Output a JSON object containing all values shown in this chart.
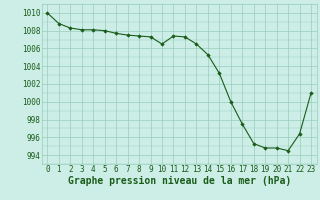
{
  "x": [
    0,
    1,
    2,
    3,
    4,
    5,
    6,
    7,
    8,
    9,
    10,
    11,
    12,
    13,
    14,
    15,
    16,
    17,
    18,
    19,
    20,
    21,
    22,
    23
  ],
  "y": [
    1010,
    1008.8,
    1008.3,
    1008.1,
    1008.1,
    1008.0,
    1007.7,
    1007.5,
    1007.4,
    1007.3,
    1006.5,
    1007.4,
    1007.3,
    1006.5,
    1005.3,
    1003.2,
    1000.0,
    997.5,
    995.3,
    994.8,
    994.8,
    994.5,
    996.4,
    1001.0
  ],
  "line_color": "#1a5c1a",
  "marker": "D",
  "marker_size": 1.8,
  "bg_color": "#cceee6",
  "grid_color": "#99ccbb",
  "xlabel": "Graphe pression niveau de la mer (hPa)",
  "xlabel_color": "#1a5c1a",
  "ylabel_ticks": [
    994,
    996,
    998,
    1000,
    1002,
    1004,
    1006,
    1008,
    1010
  ],
  "xlim": [
    -0.5,
    23.5
  ],
  "ylim": [
    993,
    1011
  ],
  "xtick_labels": [
    "0",
    "1",
    "2",
    "3",
    "4",
    "5",
    "6",
    "7",
    "8",
    "9",
    "10",
    "11",
    "12",
    "13",
    "14",
    "15",
    "16",
    "17",
    "18",
    "19",
    "20",
    "21",
    "22",
    "23"
  ],
  "tick_color": "#1a5c1a",
  "font_size": 5.5,
  "xlabel_font_size": 7.0
}
